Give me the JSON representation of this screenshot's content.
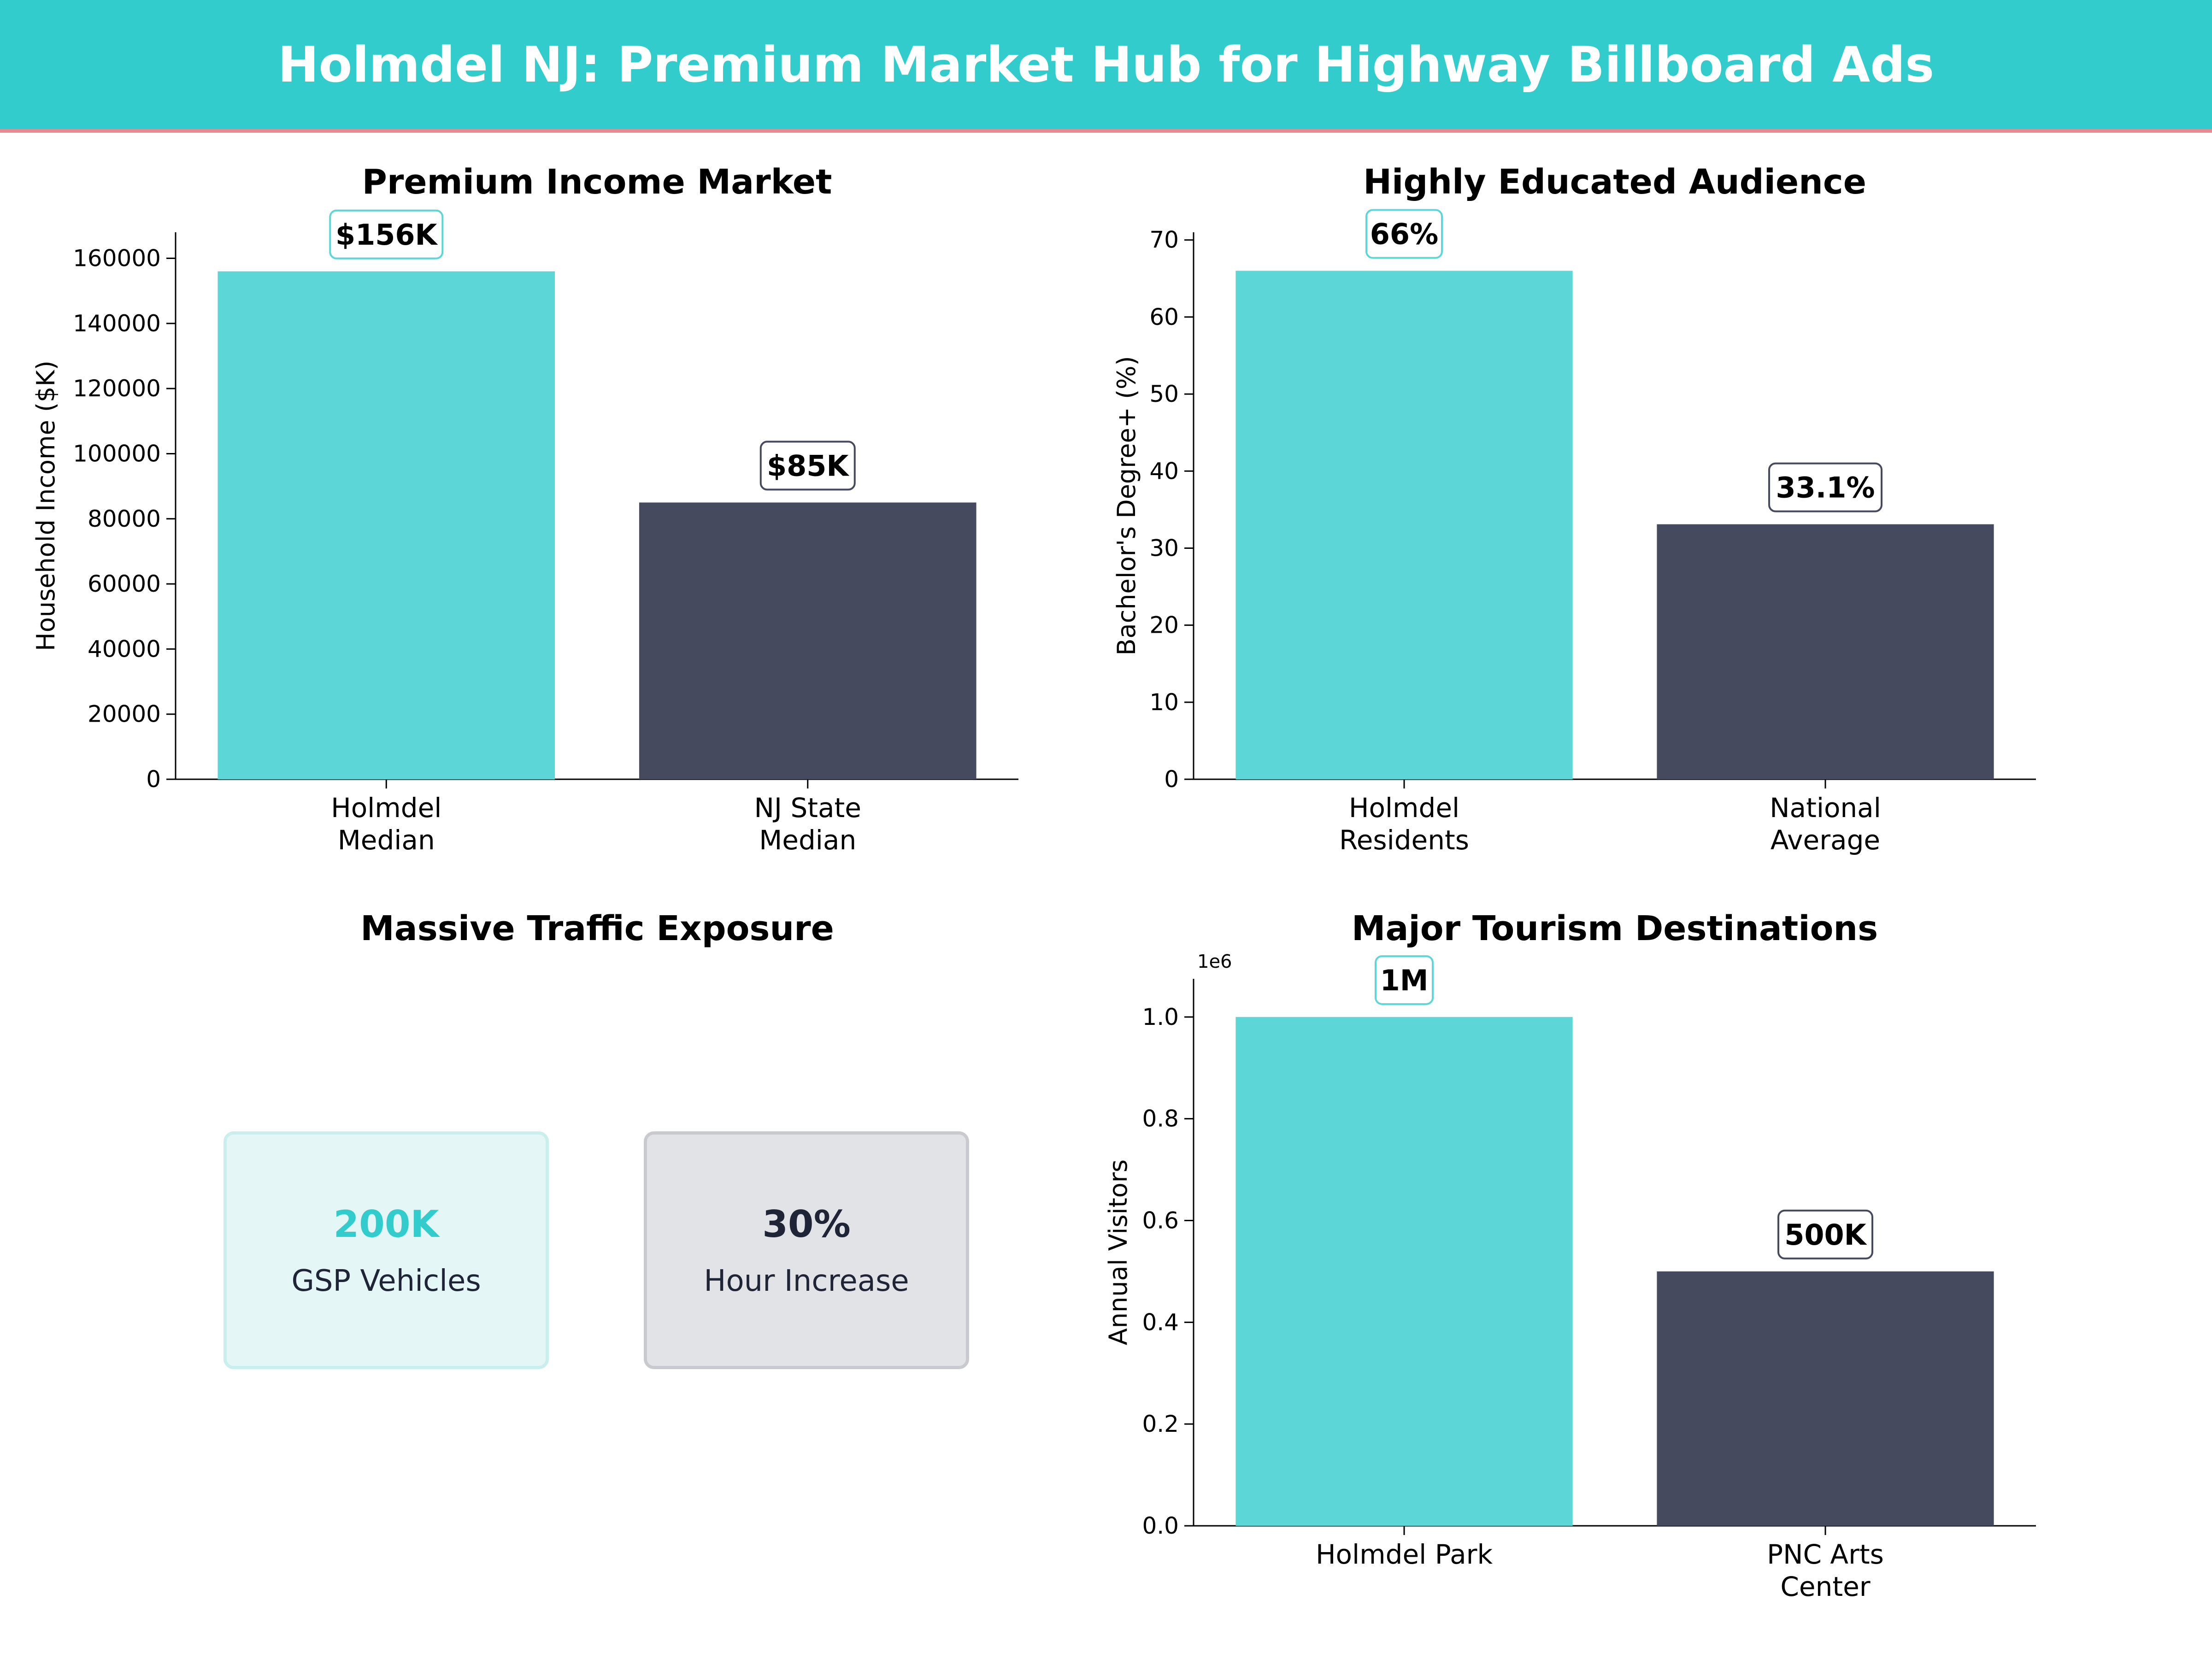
{
  "title": "Holmdel NJ: Premium Market Hub for Highway Billboard Ads",
  "colors": {
    "banner": "#33cccc",
    "banner_border": "#e88a8f",
    "primary_bar": "#5cd6d6",
    "secondary_bar": "#464a5e",
    "card_accent": "#33cccc",
    "card_dark": "#1f2437"
  },
  "chart_data": [
    {
      "id": "income",
      "type": "bar",
      "title": "Premium Income Market",
      "ylabel": "Household Income ($K)",
      "xlabel": "",
      "categories": [
        "Holmdel\nMedian",
        "NJ State\nMedian"
      ],
      "values": [
        156000,
        85000
      ],
      "data_labels": [
        "$156K",
        "$85K"
      ],
      "ylim": [
        0,
        168000
      ],
      "yticks": [
        0,
        20000,
        40000,
        60000,
        80000,
        100000,
        120000,
        140000,
        160000
      ],
      "ytick_labels": [
        "0",
        "20000",
        "40000",
        "60000",
        "80000",
        "100000",
        "120000",
        "140000",
        "160000"
      ],
      "colors": [
        "#5cd6d6",
        "#464a5e"
      ]
    },
    {
      "id": "education",
      "type": "bar",
      "title": "Highly Educated Audience",
      "ylabel": "Bachelor's Degree+ (%)",
      "xlabel": "",
      "categories": [
        "Holmdel\nResidents",
        "National\nAverage"
      ],
      "values": [
        66,
        33.1
      ],
      "data_labels": [
        "66%",
        "33.1%"
      ],
      "ylim": [
        0,
        71
      ],
      "yticks": [
        0,
        10,
        20,
        30,
        40,
        50,
        60,
        70
      ],
      "ytick_labels": [
        "0",
        "10",
        "20",
        "30",
        "40",
        "50",
        "60",
        "70"
      ],
      "colors": [
        "#5cd6d6",
        "#464a5e"
      ]
    },
    {
      "id": "tourism",
      "type": "bar",
      "title": "Major Tourism Destinations",
      "ylabel": "Annual Visitors",
      "xlabel": "",
      "categories": [
        "Holmdel Park",
        "PNC Arts\nCenter"
      ],
      "values": [
        1000000,
        500000
      ],
      "data_labels": [
        "1M",
        "500K"
      ],
      "ylim": [
        0,
        1075000
      ],
      "yticks": [
        0,
        200000,
        400000,
        600000,
        800000,
        1000000
      ],
      "ytick_labels": [
        "0.0",
        "0.2",
        "0.4",
        "0.6",
        "0.8",
        "1.0"
      ],
      "offset_text": "1e6",
      "colors": [
        "#5cd6d6",
        "#464a5e"
      ]
    }
  ],
  "traffic": {
    "title": "Massive Traffic Exposure",
    "cards": [
      {
        "value": "200K",
        "label": "GSP Vehicles"
      },
      {
        "value": "30%",
        "label": "Hour Increase"
      }
    ]
  }
}
